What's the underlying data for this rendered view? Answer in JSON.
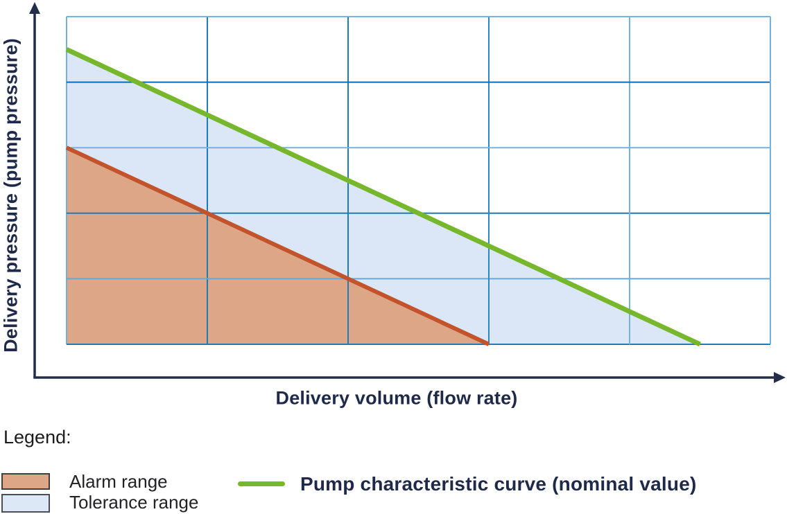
{
  "chart_data": {
    "type": "area",
    "title": "",
    "xlabel": "Delivery volume (flow rate)",
    "ylabel": "Delivery pressure (pump pressure)",
    "x_range": [
      0,
      5
    ],
    "y_range": [
      0,
      5
    ],
    "grid": "on",
    "tick_labels": "none",
    "legend_position": "bottom",
    "series": [
      {
        "name": "Tolerance range",
        "type": "area",
        "fill_color": "#dbe7f6",
        "points": [
          [
            0,
            4.5
          ],
          [
            4.5,
            0
          ]
        ],
        "note": "area under nominal pump curve, visible as band between alarm boundary and nominal curve"
      },
      {
        "name": "Alarm range",
        "type": "area",
        "fill_color": "#dda687",
        "line_color": "#c2532a",
        "line_width": 6,
        "points": [
          [
            0,
            3
          ],
          [
            3,
            0
          ]
        ],
        "note": "area under alarm boundary line, drawn on top of tolerance area"
      },
      {
        "name": "Pump characteristic curve (nominal value)",
        "type": "line",
        "line_color": "#76b72c",
        "line_width": 7,
        "points": [
          [
            0,
            4.5
          ],
          [
            4.5,
            0
          ]
        ]
      }
    ]
  },
  "legend": {
    "title": "Legend:",
    "items": [
      {
        "label": "Alarm range",
        "swatch": "rect",
        "color": "#dda687"
      },
      {
        "label": "Tolerance range",
        "swatch": "rect",
        "color": "#dde8f6"
      },
      {
        "label": "Pump characteristic curve (nominal value)",
        "swatch": "line",
        "color": "#76b72c"
      }
    ]
  },
  "style_colors": {
    "axis": "#232e48",
    "grid_dark": "#1f7ab8",
    "grid_light": "#74b2e0",
    "navy_text": "#1f2a4a"
  }
}
